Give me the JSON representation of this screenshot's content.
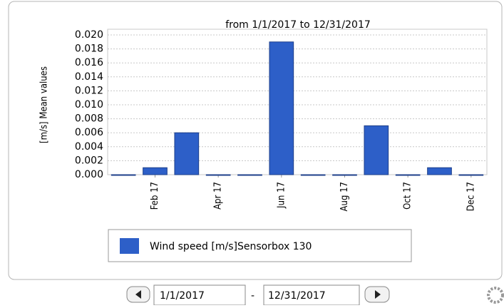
{
  "chart_data": {
    "type": "bar",
    "title": "from 1/1/2017 to 12/31/2017",
    "y_label": "[m/s] Mean values",
    "categories": [
      null,
      "Feb 17",
      null,
      "Apr 17",
      null,
      "Jun 17",
      null,
      "Aug 17",
      null,
      "Oct 17",
      null,
      "Dec 17"
    ],
    "series": [
      {
        "name": "Wind speed [m/s]Sensorbox 130",
        "color": "#2d5fc8",
        "values": [
          0,
          0.001,
          0.006,
          0,
          0,
          0.019,
          0,
          0,
          0.007,
          0,
          0.001,
          0
        ]
      }
    ],
    "ylim": [
      0,
      0.02
    ],
    "yticks": [
      {
        "value": 0,
        "label": "0.000"
      },
      {
        "value": 0.002,
        "label": "0.002"
      },
      {
        "value": 0.004,
        "label": "0.004"
      },
      {
        "value": 0.006,
        "label": "0.006"
      },
      {
        "value": 0.008,
        "label": "0.008"
      },
      {
        "value": 0.01,
        "label": "0.010"
      },
      {
        "value": 0.012,
        "label": "0.012"
      },
      {
        "value": 0.014,
        "label": "0.014"
      },
      {
        "value": 0.016,
        "label": "0.016"
      },
      {
        "value": 0.018,
        "label": "0.018"
      },
      {
        "value": 0.02,
        "label": "0.020"
      }
    ],
    "grid": true,
    "legend": "bottom"
  },
  "controls": {
    "start_date": "1/1/2017",
    "separator": "-",
    "end_date": "12/31/2017"
  }
}
